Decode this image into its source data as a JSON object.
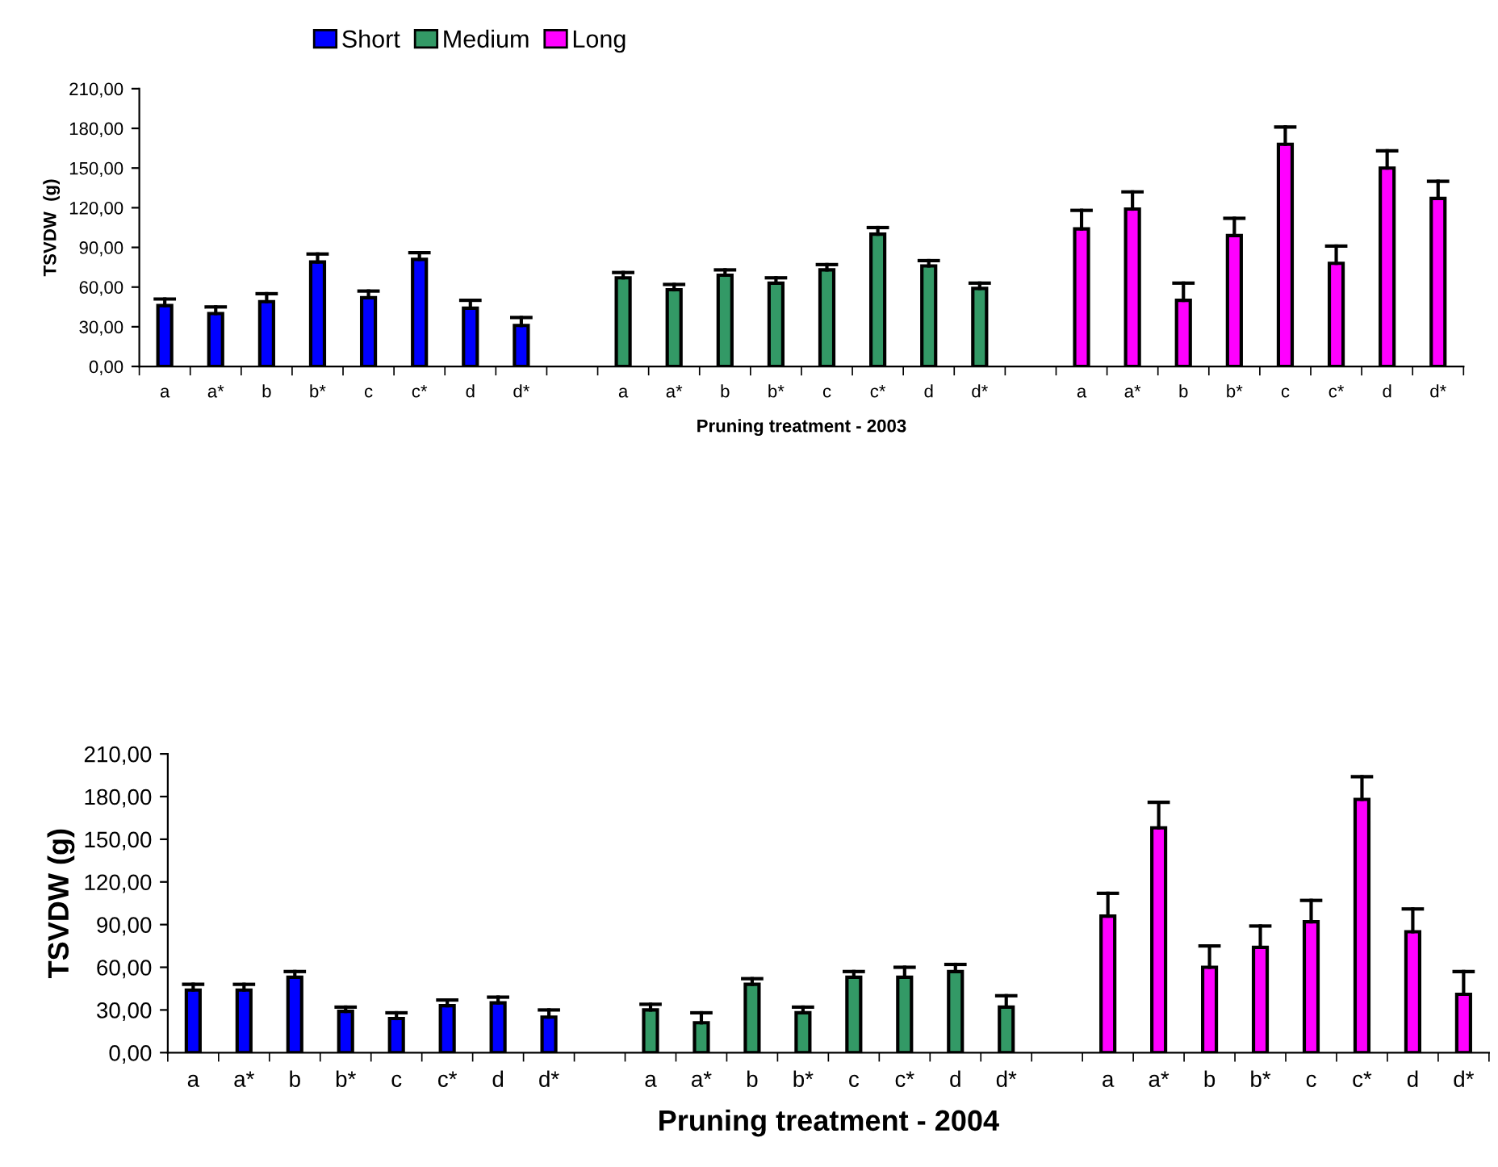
{
  "chart_data": [
    {
      "type": "bar",
      "xlabel": "Pruning treatment - 2003",
      "ylabel": "TSVDW  (g)",
      "categories": [
        "a",
        "a*",
        "b",
        "b*",
        "c",
        "c*",
        "d",
        "d*",
        null,
        "a",
        "a*",
        "b",
        "b*",
        "c",
        "c*",
        "d",
        "d*",
        null,
        "a",
        "a*",
        "b",
        "b*",
        "c",
        "c*",
        "d",
        "d*"
      ],
      "series": [
        {
          "name": "Short",
          "color": "#0000ff",
          "values": [
            46,
            40,
            49,
            79,
            52,
            81,
            44,
            31,
            null,
            null,
            null,
            null,
            null,
            null,
            null,
            null,
            null,
            null,
            null,
            null,
            null,
            null,
            null,
            null,
            null,
            null
          ],
          "errors": [
            [
              46,
              51
            ],
            [
              40,
              45
            ],
            [
              49,
              55
            ],
            [
              79,
              85
            ],
            [
              52,
              57
            ],
            [
              81,
              86
            ],
            [
              44,
              50
            ],
            [
              31,
              37
            ],
            null,
            null,
            null,
            null,
            null,
            null,
            null,
            null,
            null,
            null,
            null,
            null,
            null,
            null,
            null,
            null,
            null,
            null
          ]
        },
        {
          "name": "Medium",
          "color": "#339966",
          "values": [
            null,
            null,
            null,
            null,
            null,
            null,
            null,
            null,
            null,
            67,
            58,
            69,
            63,
            73,
            100,
            76,
            59,
            null,
            null,
            null,
            null,
            null,
            null,
            null,
            null,
            null
          ],
          "errors": [
            null,
            null,
            null,
            null,
            null,
            null,
            null,
            null,
            null,
            [
              67,
              71
            ],
            [
              58,
              62
            ],
            [
              69,
              73
            ],
            [
              63,
              67
            ],
            [
              73,
              77
            ],
            [
              100,
              105
            ],
            [
              76,
              80
            ],
            [
              59,
              63
            ],
            null,
            null,
            null,
            null,
            null,
            null,
            null,
            null,
            null
          ]
        },
        {
          "name": "Long",
          "color": "#ff00ff",
          "values": [
            null,
            null,
            null,
            null,
            null,
            null,
            null,
            null,
            null,
            null,
            null,
            null,
            null,
            null,
            null,
            null,
            null,
            null,
            104,
            119,
            50,
            99,
            168,
            78,
            150,
            127
          ],
          "errors": [
            null,
            null,
            null,
            null,
            null,
            null,
            null,
            null,
            null,
            null,
            null,
            null,
            null,
            null,
            null,
            null,
            null,
            null,
            [
              104,
              118
            ],
            [
              119,
              132
            ],
            [
              50,
              63
            ],
            [
              99,
              112
            ],
            [
              168,
              181
            ],
            [
              78,
              91
            ],
            [
              150,
              163
            ],
            [
              127,
              140
            ]
          ]
        }
      ],
      "ylim": [
        0,
        210
      ],
      "yticks": [
        {
          "value": 0,
          "label": "0,00"
        },
        {
          "value": 30,
          "label": "30,00"
        },
        {
          "value": 60,
          "label": "60,00"
        },
        {
          "value": 90,
          "label": "90,00"
        },
        {
          "value": 120,
          "label": "120,00"
        },
        {
          "value": 150,
          "label": "150,00"
        },
        {
          "value": 180,
          "label": "180,00"
        },
        {
          "value": 210,
          "label": "210,00"
        }
      ],
      "grid": false,
      "legend": "top"
    },
    {
      "type": "bar",
      "xlabel": "Pruning treatment - 2004",
      "ylabel": "TSVDW (g)",
      "categories": [
        "a",
        "a*",
        "b",
        "b*",
        "c",
        "c*",
        "d",
        "d*",
        null,
        "a",
        "a*",
        "b",
        "b*",
        "c",
        "c*",
        "d",
        "d*",
        null,
        "a",
        "a*",
        "b",
        "b*",
        "c",
        "c*",
        "d",
        "d*"
      ],
      "series": [
        {
          "color": "#0000ff",
          "values": [
            44,
            44,
            53,
            29,
            24,
            33,
            35,
            25,
            null,
            null,
            null,
            null,
            null,
            null,
            null,
            null,
            null,
            null,
            null,
            null,
            null,
            null,
            null,
            null,
            null,
            null
          ],
          "errors": [
            [
              44,
              48
            ],
            [
              44,
              48
            ],
            [
              53,
              57
            ],
            [
              29,
              32
            ],
            [
              24,
              28
            ],
            [
              33,
              37
            ],
            [
              35,
              39
            ],
            [
              25,
              30
            ],
            null,
            null,
            null,
            null,
            null,
            null,
            null,
            null,
            null,
            null,
            null,
            null,
            null,
            null,
            null,
            null,
            null,
            null
          ]
        },
        {
          "color": "#339966",
          "values": [
            null,
            null,
            null,
            null,
            null,
            null,
            null,
            null,
            null,
            30,
            21,
            48,
            28,
            53,
            53,
            57,
            32,
            null,
            null,
            null,
            null,
            null,
            null,
            null,
            null,
            null
          ],
          "errors": [
            null,
            null,
            null,
            null,
            null,
            null,
            null,
            null,
            null,
            [
              30,
              34
            ],
            [
              21,
              28
            ],
            [
              48,
              52
            ],
            [
              28,
              32
            ],
            [
              53,
              57
            ],
            [
              53,
              60
            ],
            [
              57,
              62
            ],
            [
              32,
              40
            ],
            null,
            null,
            null,
            null,
            null,
            null,
            null,
            null,
            null
          ]
        },
        {
          "color": "#ff00ff",
          "values": [
            null,
            null,
            null,
            null,
            null,
            null,
            null,
            null,
            null,
            null,
            null,
            null,
            null,
            null,
            null,
            null,
            null,
            null,
            96,
            158,
            60,
            74,
            92,
            178,
            85,
            41
          ],
          "errors": [
            null,
            null,
            null,
            null,
            null,
            null,
            null,
            null,
            null,
            null,
            null,
            null,
            null,
            null,
            null,
            null,
            null,
            null,
            [
              96,
              112
            ],
            [
              158,
              176
            ],
            [
              60,
              75
            ],
            [
              74,
              89
            ],
            [
              92,
              107
            ],
            [
              178,
              194
            ],
            [
              85,
              101
            ],
            [
              41,
              57
            ]
          ]
        }
      ],
      "ylim": [
        0,
        210
      ],
      "yticks": [
        {
          "value": 0,
          "label": "0,00"
        },
        {
          "value": 30,
          "label": "30,00"
        },
        {
          "value": 60,
          "label": "60,00"
        },
        {
          "value": 90,
          "label": "90,00"
        },
        {
          "value": 120,
          "label": "120,00"
        },
        {
          "value": 150,
          "label": "150,00"
        },
        {
          "value": 180,
          "label": "180,00"
        },
        {
          "value": 210,
          "label": "210,00"
        }
      ],
      "grid": false,
      "legend": false
    }
  ]
}
